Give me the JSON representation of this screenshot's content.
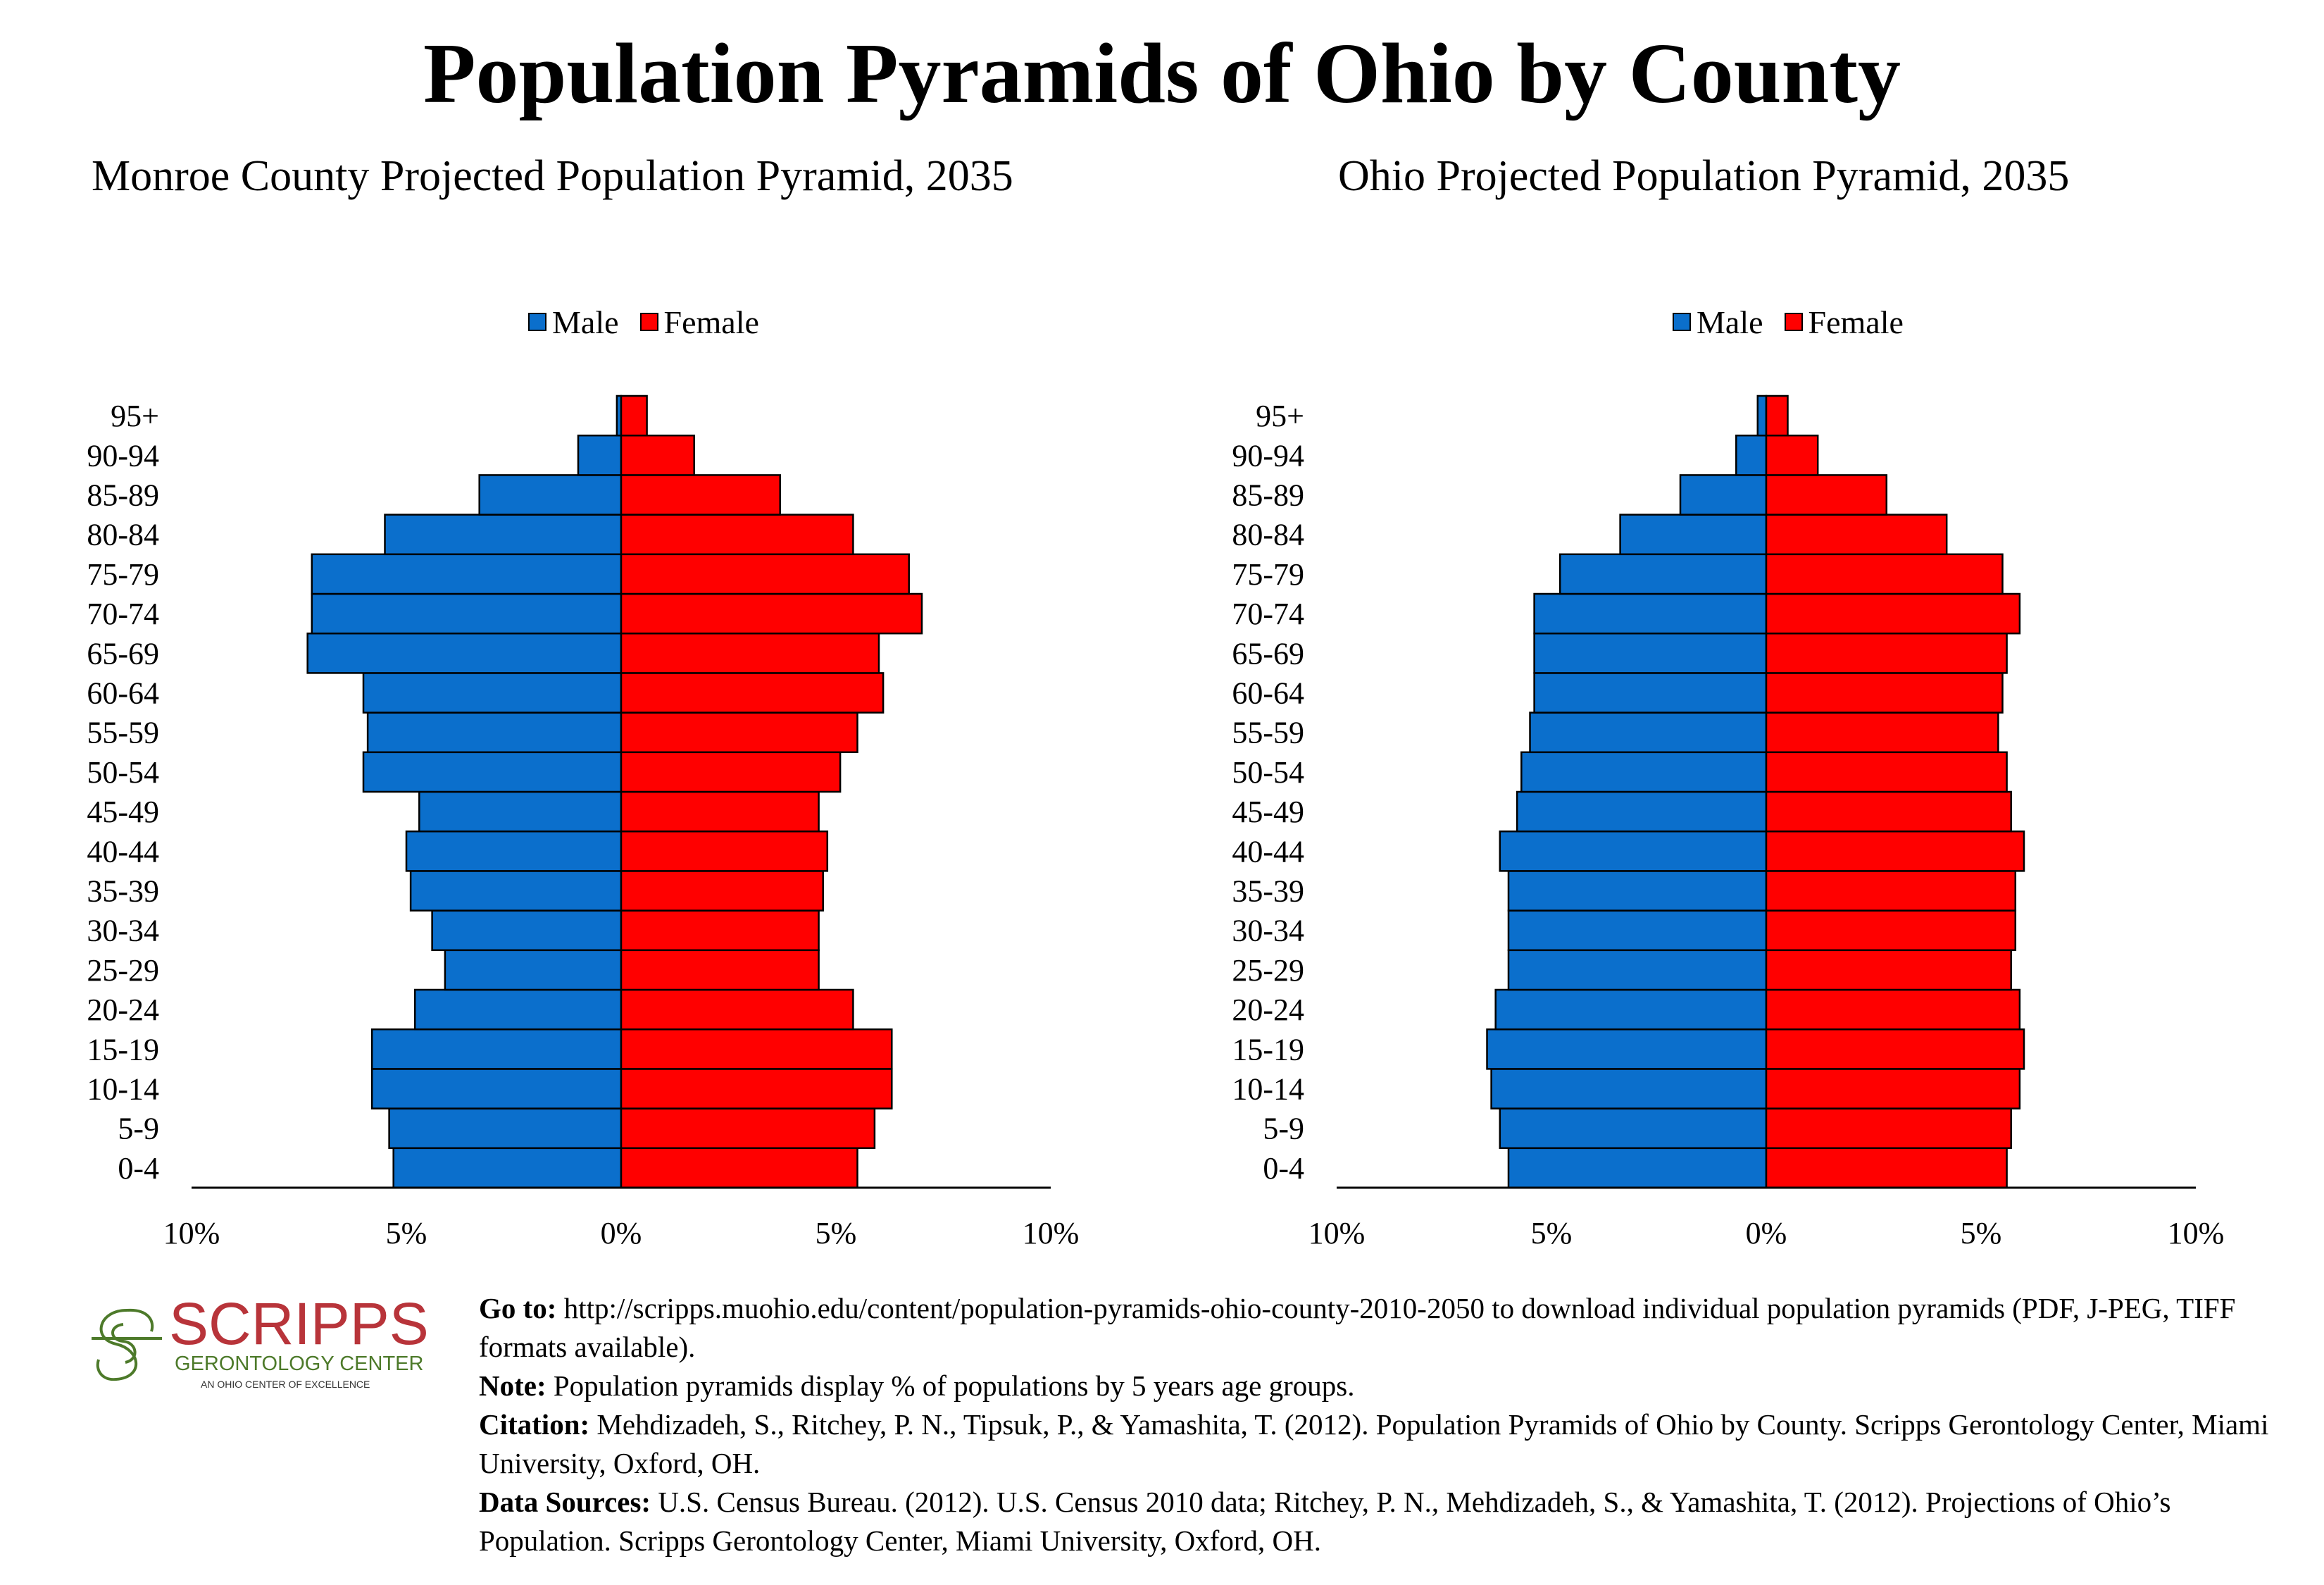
{
  "title": "Population Pyramids of Ohio by County",
  "colors": {
    "male": "#0b6fcc",
    "female": "#ff0000",
    "logo_red": "#b8343a",
    "logo_green": "#4d7a2a"
  },
  "legend": {
    "male": "Male",
    "female": "Female"
  },
  "chart_data": [
    {
      "type": "bar",
      "orientation": "horizontal-pyramid",
      "title": "Monroe County Projected Population Pyramid, 2035",
      "categories": [
        "0-4",
        "5-9",
        "10-14",
        "15-19",
        "20-24",
        "25-29",
        "30-34",
        "35-39",
        "40-44",
        "45-49",
        "50-54",
        "55-59",
        "60-64",
        "65-69",
        "70-74",
        "75-79",
        "80-84",
        "85-89",
        "90-94",
        "95+"
      ],
      "series": [
        {
          "name": "Male",
          "values": [
            5.3,
            5.4,
            5.8,
            5.8,
            4.8,
            4.1,
            4.4,
            4.9,
            5.0,
            4.7,
            6.0,
            5.9,
            6.0,
            7.3,
            7.2,
            7.2,
            5.5,
            3.3,
            1.0,
            0.1
          ]
        },
        {
          "name": "Female",
          "values": [
            5.5,
            5.9,
            6.3,
            6.3,
            5.4,
            4.6,
            4.6,
            4.7,
            4.8,
            4.6,
            5.1,
            5.5,
            6.1,
            6.0,
            7.0,
            6.7,
            5.4,
            3.7,
            1.7,
            0.6
          ]
        }
      ],
      "x_ticks": [
        "10%",
        "5%",
        "0%",
        "5%",
        "10%"
      ],
      "xlim": [
        -10,
        10
      ],
      "legend_position": "top"
    },
    {
      "type": "bar",
      "orientation": "horizontal-pyramid",
      "title": "Ohio Projected Population Pyramid, 2035",
      "categories": [
        "0-4",
        "5-9",
        "10-14",
        "15-19",
        "20-24",
        "25-29",
        "30-34",
        "35-39",
        "40-44",
        "45-49",
        "50-54",
        "55-59",
        "60-64",
        "65-69",
        "70-74",
        "75-79",
        "80-84",
        "85-89",
        "90-94",
        "95+"
      ],
      "series": [
        {
          "name": "Male",
          "values": [
            6.0,
            6.2,
            6.4,
            6.5,
            6.3,
            6.0,
            6.0,
            6.0,
            6.2,
            5.8,
            5.7,
            5.5,
            5.4,
            5.4,
            5.4,
            4.8,
            3.4,
            2.0,
            0.7,
            0.2
          ]
        },
        {
          "name": "Female",
          "values": [
            5.6,
            5.7,
            5.9,
            6.0,
            5.9,
            5.7,
            5.8,
            5.8,
            6.0,
            5.7,
            5.6,
            5.4,
            5.5,
            5.6,
            5.9,
            5.5,
            4.2,
            2.8,
            1.2,
            0.5
          ]
        }
      ],
      "x_ticks": [
        "10%",
        "5%",
        "0%",
        "5%",
        "10%"
      ],
      "xlim": [
        -10,
        10
      ],
      "legend_position": "top"
    }
  ],
  "logo": {
    "name": "SCRIPPS",
    "line2": "GERONTOLOGY CENTER",
    "line3": "AN OHIO CENTER OF EXCELLENCE"
  },
  "footer": {
    "goto_label": "Go to:",
    "goto_text": "http://scripps.muohio.edu/content/population-pyramids-ohio-county-2010-2050 to download individual population pyramids (PDF, J-PEG, TIFF formats available).",
    "note_label": "Note:",
    "note_text": "Population pyramids display % of populations by 5 years age groups.",
    "citation_label": "Citation:",
    "citation_text": "Mehdizadeh, S., Ritchey, P. N., Tipsuk, P., & Yamashita, T. (2012). Population Pyramids of Ohio by County. Scripps Gerontology Center, Miami University, Oxford, OH.",
    "sources_label": "Data Sources:",
    "sources_text": "U.S. Census Bureau. (2012). U.S. Census 2010 data; Ritchey, P. N., Mehdizadeh, S., & Yamashita, T. (2012). Projections of Ohio’s Population. Scripps Gerontology Center, Miami University, Oxford, OH."
  }
}
